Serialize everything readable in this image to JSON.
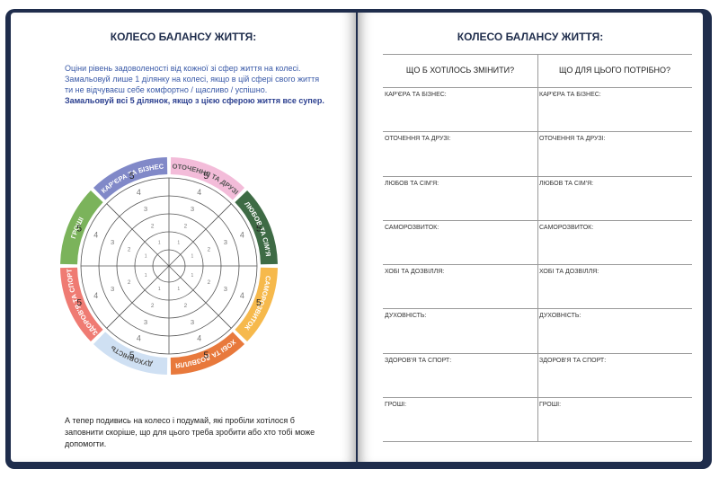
{
  "left_page": {
    "title": "КОЛЕСО БАЛАНСУ ЖИТТЯ:",
    "instruction": "Оціни рівень задоволеності від кожної зі сфер життя на колесі. Замальовуй лише 1 ділянку на колесі, якщо в цій сфері свого життя ти не відчуваєш себе комфортно / щасливо / успішно.",
    "instruction_bold": "Замальовуй всі 5 ділянок, якщо з цією сферою життя все супер.",
    "wheel": {
      "scale": [
        "1",
        "2",
        "3",
        "4",
        "5"
      ],
      "segments": [
        {
          "label": "ОТОЧЕННЯ ТА ДРУЗІ",
          "color": "#f3bcd9"
        },
        {
          "label": "ЛЮБОВ ТА СІМ'Я",
          "color": "#3e6b45"
        },
        {
          "label": "САМОРОЗВИТОК",
          "color": "#f6b94c"
        },
        {
          "label": "ХОБІ ТА ДОЗВІЛЛЯ",
          "color": "#e8793c"
        },
        {
          "label": "ДУХОВНІСТЬ",
          "color": "#cfe0f3"
        },
        {
          "label": "ЗДОРОВ'Я ТА СПОРТ",
          "color": "#ef7b73"
        },
        {
          "label": "ГРОШІ",
          "color": "#7bb35b"
        },
        {
          "label": "КАР'ЄРА ТА БІЗНЕС",
          "color": "#8189c8"
        }
      ]
    },
    "footer": "А тепер подивись на колесо і подумай, які пробіли хотілося б заповнити скоріше, що для цього треба зробити або хто тобі може допомогти."
  },
  "right_page": {
    "title": "КОЛЕСО БАЛАНСУ ЖИТТЯ:",
    "table": {
      "headers": [
        "ЩО Б ХОТІЛОСЬ ЗМІНИТИ?",
        "ЩО ДЛЯ ЦЬОГО ПОТРІБНО?"
      ],
      "rows": [
        "КАР'ЄРА ТА БІЗНЕС:",
        "ОТОЧЕННЯ ТА ДРУЗІ:",
        "ЛЮБОВ ТА СІМ'Я:",
        "САМОРОЗВИТОК:",
        "ХОБІ ТА ДОЗВІЛЛЯ:",
        "ДУХОВНІСТЬ:",
        "ЗДОРОВ'Я ТА СПОРТ:",
        "ГРОШІ:"
      ]
    }
  }
}
